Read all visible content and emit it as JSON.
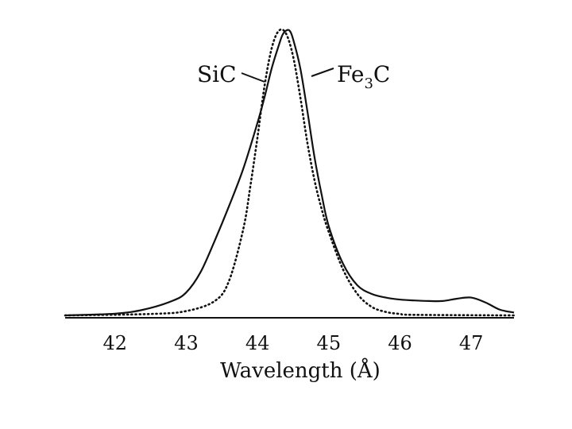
{
  "chart_data": {
    "type": "line",
    "title": "",
    "xlabel": "Wavelength (Å)",
    "ylabel": "",
    "xlim": [
      41.3,
      47.6
    ],
    "ylim": [
      0,
      1.0
    ],
    "grid": false,
    "x_ticks": [
      "42",
      "43",
      "44",
      "45",
      "46",
      "47"
    ],
    "series": [
      {
        "name": "Fe₃C",
        "label_main": "Fe",
        "label_sub": "3",
        "label_tail": "C",
        "style": "solid",
        "x": [
          41.3,
          42.0,
          42.4,
          42.8,
          43.0,
          43.2,
          43.4,
          43.6,
          43.8,
          44.0,
          44.1,
          44.2,
          44.3,
          44.35,
          44.4,
          44.45,
          44.5,
          44.6,
          44.7,
          44.8,
          44.9,
          45.0,
          45.2,
          45.4,
          45.6,
          45.8,
          46.0,
          46.2,
          46.4,
          46.6,
          46.8,
          47.0,
          47.2,
          47.4,
          47.6
        ],
        "y": [
          0.0,
          0.006,
          0.02,
          0.05,
          0.08,
          0.15,
          0.26,
          0.38,
          0.51,
          0.67,
          0.76,
          0.86,
          0.94,
          0.975,
          0.99,
          0.99,
          0.96,
          0.86,
          0.71,
          0.55,
          0.42,
          0.31,
          0.18,
          0.105,
          0.075,
          0.062,
          0.055,
          0.052,
          0.05,
          0.05,
          0.058,
          0.062,
          0.045,
          0.02,
          0.01
        ]
      },
      {
        "name": "SiC",
        "label_main": "SiC",
        "label_sub": "",
        "label_tail": "",
        "style": "dotted",
        "x": [
          41.3,
          42.5,
          43.0,
          43.4,
          43.6,
          43.8,
          43.9,
          44.0,
          44.1,
          44.2,
          44.3,
          44.4,
          44.5,
          44.6,
          44.7,
          44.8,
          44.9,
          45.0,
          45.2,
          45.4,
          45.6,
          45.8,
          46.0,
          46.2,
          47.6
        ],
        "y": [
          0.0,
          0.005,
          0.015,
          0.05,
          0.12,
          0.3,
          0.45,
          0.62,
          0.8,
          0.93,
          0.99,
          0.98,
          0.9,
          0.76,
          0.6,
          0.47,
          0.37,
          0.29,
          0.16,
          0.075,
          0.03,
          0.012,
          0.005,
          0.002,
          0.0
        ]
      }
    ]
  }
}
